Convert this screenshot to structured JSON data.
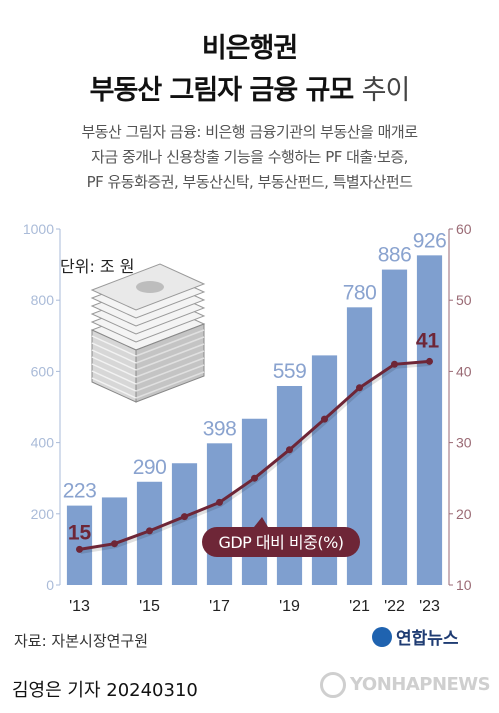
{
  "header": {
    "title_line1": "비은행권",
    "title_line2_bold": "부동산 그림자 금융 규모",
    "title_line2_light": "추이"
  },
  "description": [
    "부동산 그림자 금융: 비은행 금융기관의 부동산을 매개로",
    "자금 중개나 신용창출 기능을 수행하는 PF 대출·보증,",
    "PF 유동화증권, 부동산신탁, 부동산펀드, 특별자산펀드"
  ],
  "unit_label": "단위: 조 원",
  "source": "자료: 자본시장연구원",
  "logo": "연합뉴스",
  "byline": "김영은 기자  20240310",
  "agency_mark": "YONHAPNEWS",
  "colors": {
    "bar": "#7f9fcf",
    "line": "#6e2637",
    "left_axis": "#aabbd8",
    "right_axis": "#9a6a74",
    "bar_label": "#8aa3cf"
  },
  "chart_data": {
    "type": "bar",
    "categories": [
      "2013",
      "2014",
      "2015",
      "2016",
      "2017",
      "2018",
      "2019",
      "2020",
      "2021",
      "2022",
      "2023"
    ],
    "x_tick_labels": [
      "'13",
      "",
      "'15",
      "",
      "'17",
      "",
      "'19",
      "",
      "'21",
      "'22",
      "'23"
    ],
    "series": [
      {
        "values": [
          223,
          246,
          290,
          342,
          398,
          467,
          559,
          645,
          780,
          886,
          926
        ],
        "axis": "left",
        "type": "bar"
      },
      {
        "name": "GDP 대비 비중(%)",
        "values": [
          15.0,
          15.8,
          17.6,
          19.6,
          21.6,
          25.0,
          29.0,
          33.3,
          37.7,
          41.0,
          41.4
        ],
        "axis": "right",
        "type": "line"
      }
    ],
    "bar_labels": {
      "0": "223",
      "2": "290",
      "4": "398",
      "6": "559",
      "8": "780",
      "9": "886",
      "10": "926"
    },
    "line_labels": {
      "0": "15",
      "10": "41"
    },
    "y_left": {
      "lim": [
        0,
        1000
      ],
      "ticks": [
        0,
        200,
        400,
        600,
        800,
        1000
      ]
    },
    "y_right": {
      "lim": [
        10,
        60
      ],
      "ticks": [
        10,
        20,
        30,
        40,
        50,
        60
      ]
    },
    "grid": false,
    "legend_placement": "callout-center"
  }
}
